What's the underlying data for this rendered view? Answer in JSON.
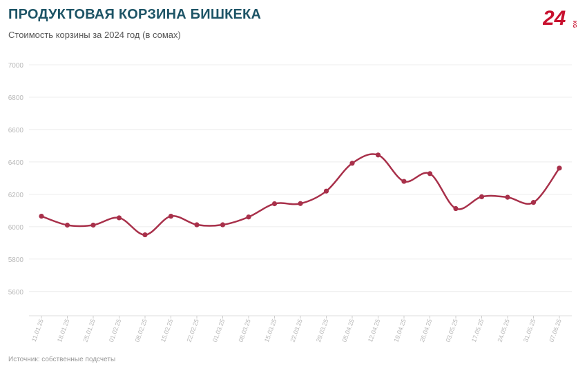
{
  "header": {
    "title": "ПРОДУКТОВАЯ КОРЗИНА БИШКЕКА",
    "subtitle": "Стоимость корзины за 2024 год (в сомах)",
    "logo_text": "24",
    "logo_suffix": "KG"
  },
  "footer": {
    "source": "Источник: собственные подсчеты"
  },
  "colors": {
    "line": "#a8304a",
    "title": "#1d5466",
    "grid": "#ececec",
    "logo": "#c8102e"
  },
  "chart_data": {
    "type": "line",
    "title": "ПРОДУКТОВАЯ КОРЗИНА БИШКЕКА",
    "subtitle": "Стоимость корзины за 2024 год (в сомах)",
    "xlabel": "",
    "ylabel": "",
    "categories": [
      "11.01.25",
      "18.01.25",
      "25.01.25",
      "01.02.25",
      "08.02.25",
      "15.02.25",
      "22.02.25",
      "01.03.25",
      "08.03.25",
      "15.03.25",
      "22.03.25",
      "29.03.25",
      "05.04.25",
      "12.04.25",
      "19.04.25",
      "26.04.25",
      "03.05.25",
      "17.05.25",
      "24.05.25",
      "31.05.25",
      "07.06.25"
    ],
    "series": [
      {
        "values": [
          6065,
          6010,
          6010,
          6055,
          5950,
          6065,
          6012,
          6012,
          6060,
          6142,
          6143,
          6220,
          6392,
          6443,
          6280,
          6328,
          6112,
          6185,
          6182,
          6150,
          6362
        ]
      }
    ],
    "yticks": [
      5600,
      5800,
      6000,
      6200,
      6400,
      6600,
      6800,
      7000
    ],
    "ylim": [
      5450,
      7000
    ],
    "grid": true,
    "legend": "none"
  }
}
